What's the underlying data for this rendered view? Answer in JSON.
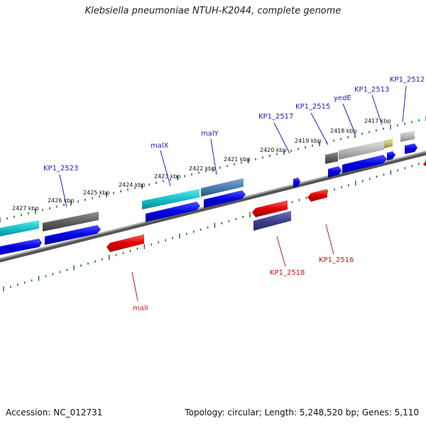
{
  "title": "Klebsiella pneumoniae NTUH-K2044, complete genome",
  "accession": "Accession: NC_012731",
  "summary": "Topology: circular; Length: 5,248,520 bp; Genes: 5,110",
  "colors": {
    "backbone": "#808080",
    "ticks": "#1a7a1a",
    "cds_forward": "#0000e0",
    "cds_reverse": "#e00000",
    "label_forward": "#2020c0",
    "label_reverse": "#c01818",
    "cog_cyan": "#18c0c8",
    "cog_darkgray": "#606060",
    "cog_steelblue": "#4a7fb0",
    "cog_lightgray": "#b8b8b8",
    "cog_olive": "#c8c070",
    "cog_slateblue": "#404090"
  },
  "scale_labels": [
    "2427 kbp",
    "2426 kbp",
    "2425 kbp",
    "2424 kbp",
    "2423 kbp",
    "2422 kbp",
    "2421 kbp",
    "2420 kbp",
    "2419 kbp",
    "2418 kbp",
    "2417 kbp"
  ],
  "gene_labels": [
    {
      "text": "KP1_2523",
      "strand": "forward"
    },
    {
      "text": "malX",
      "strand": "forward"
    },
    {
      "text": "malY",
      "strand": "forward"
    },
    {
      "text": "KP1_2517",
      "strand": "forward"
    },
    {
      "text": "KP1_2515",
      "strand": "forward"
    },
    {
      "text": "yedE",
      "strand": "forward"
    },
    {
      "text": "KP1_2513",
      "strand": "forward"
    },
    {
      "text": "KP1_2512",
      "strand": "forward"
    },
    {
      "text": "KP1_2518",
      "strand": "reverse"
    },
    {
      "text": "KP1_2516",
      "strand": "reverse"
    },
    {
      "text": "malI",
      "strand": "reverse"
    }
  ]
}
